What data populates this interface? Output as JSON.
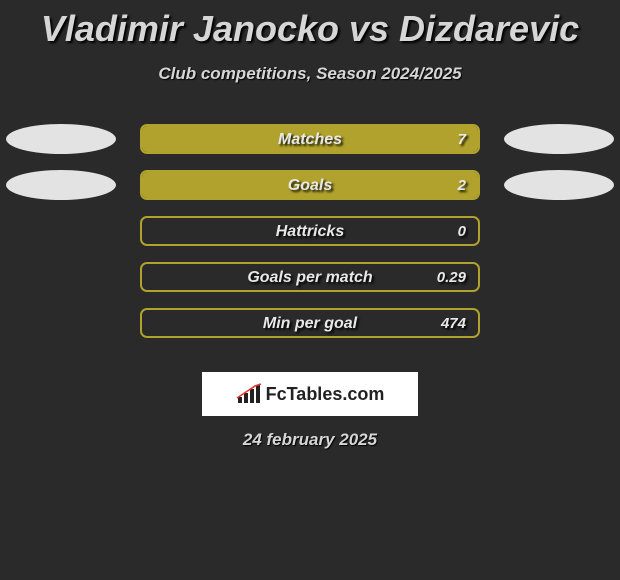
{
  "title": "Vladimir Janocko vs Dizdarevic",
  "subtitle": "Club competitions, Season 2024/2025",
  "date": "24 february 2025",
  "logo": {
    "text": "FcTables.com"
  },
  "colors": {
    "background": "#2a2a2a",
    "left_ellipse": "#e3e3e3",
    "right_ellipse": "#e3e3e3",
    "track_border": "#b0a22c",
    "fill": "#b0a22c",
    "text": "#e8e8e8"
  },
  "stats": [
    {
      "label": "Matches",
      "value": "7",
      "fill_percent": 100
    },
    {
      "label": "Goals",
      "value": "2",
      "fill_percent": 100
    },
    {
      "label": "Hattricks",
      "value": "0",
      "fill_percent": 0
    },
    {
      "label": "Goals per match",
      "value": "0.29",
      "fill_percent": 0
    },
    {
      "label": "Min per goal",
      "value": "474",
      "fill_percent": 0
    }
  ]
}
